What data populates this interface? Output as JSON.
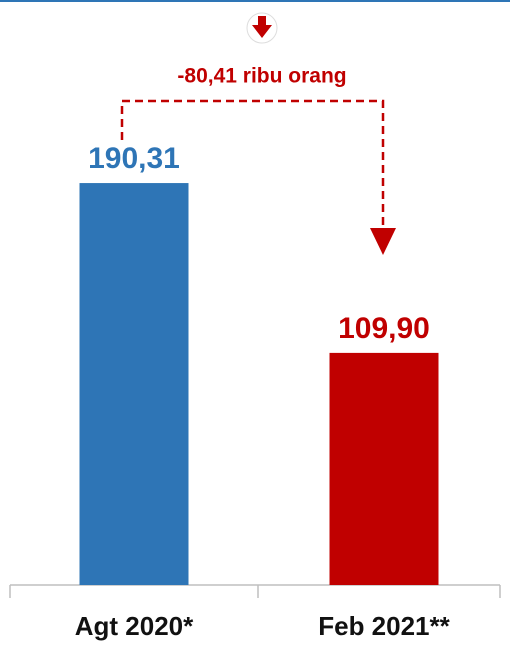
{
  "chart_data": {
    "type": "bar",
    "annotation": "-80,41 ribu orang",
    "categories": [
      "Agt 2020*",
      "Feb 2021**"
    ],
    "values": [
      190.31,
      109.9
    ],
    "value_labels": [
      "190,31",
      "109,90"
    ],
    "colors": [
      "#2e75b6",
      "#c00000"
    ]
  }
}
